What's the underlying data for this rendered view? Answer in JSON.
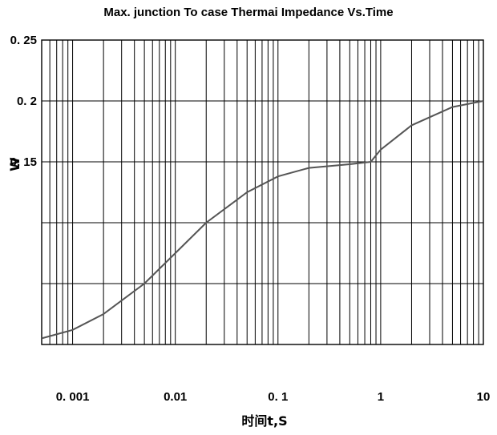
{
  "chart_data": {
    "type": "line",
    "title": "Max. junction To case Thermai Impedance Vs.Time",
    "xlabel": "时间t,S",
    "ylabel": "W",
    "x_scale": "log",
    "xlim": [
      0.0005,
      10
    ],
    "ylim": [
      0,
      0.25
    ],
    "grid": true,
    "x_ticks": [
      0.001,
      0.01,
      0.1,
      1,
      10
    ],
    "x_tick_labels": [
      "0. 001",
      "0.01",
      "0. 1",
      "1",
      "10"
    ],
    "y_ticks": [
      0.25,
      0.2,
      0.15
    ],
    "y_tick_labels": [
      "0. 25",
      "0. 2",
      "0. 15"
    ],
    "series": [
      {
        "x": [
          0.0005,
          0.001,
          0.002,
          0.005,
          0.01,
          0.02,
          0.05,
          0.1,
          0.2,
          0.5,
          0.8,
          1,
          2,
          5,
          10
        ],
        "y": [
          0.005,
          0.012,
          0.025,
          0.05,
          0.075,
          0.1,
          0.125,
          0.138,
          0.145,
          0.148,
          0.15,
          0.16,
          0.18,
          0.195,
          0.2
        ]
      }
    ],
    "colors": {
      "curve": "#555555",
      "grid": "#000000"
    }
  }
}
